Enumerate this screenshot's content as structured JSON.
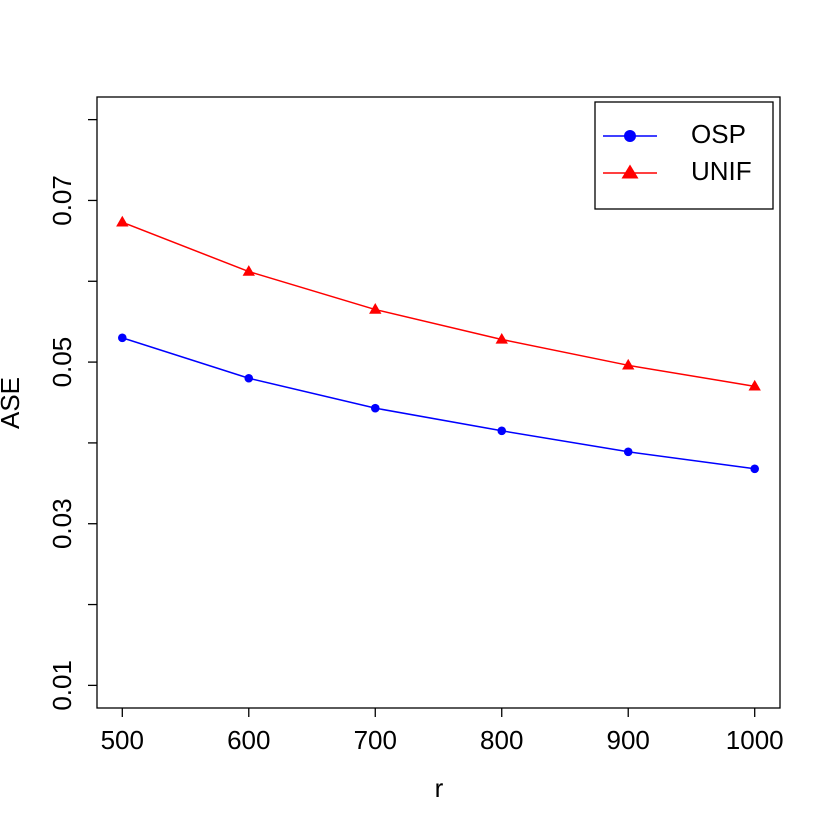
{
  "chart_data": {
    "type": "line",
    "x_label": "r",
    "y_label": "ASE",
    "x": [
      500,
      600,
      700,
      800,
      900,
      1000
    ],
    "series": [
      {
        "name": "OSP",
        "color": "#0000ff",
        "marker": "circle",
        "values": [
          0.053,
          0.048,
          0.0443,
          0.0415,
          0.0389,
          0.0368
        ]
      },
      {
        "name": "UNIF",
        "color": "#ff0000",
        "marker": "triangle",
        "values": [
          0.0673,
          0.0612,
          0.0565,
          0.0528,
          0.0496,
          0.047
        ]
      }
    ],
    "xlim": [
      480,
      1020
    ],
    "ylim": [
      0.0072,
      0.0828
    ],
    "xticks": [
      500,
      600,
      700,
      800,
      900,
      1000
    ],
    "yticks": [
      0.01,
      0.03,
      0.05,
      0.07
    ],
    "yticks_minor": [
      0.02,
      0.04,
      0.06,
      0.08
    ],
    "legend": "top-right",
    "grid": false
  }
}
